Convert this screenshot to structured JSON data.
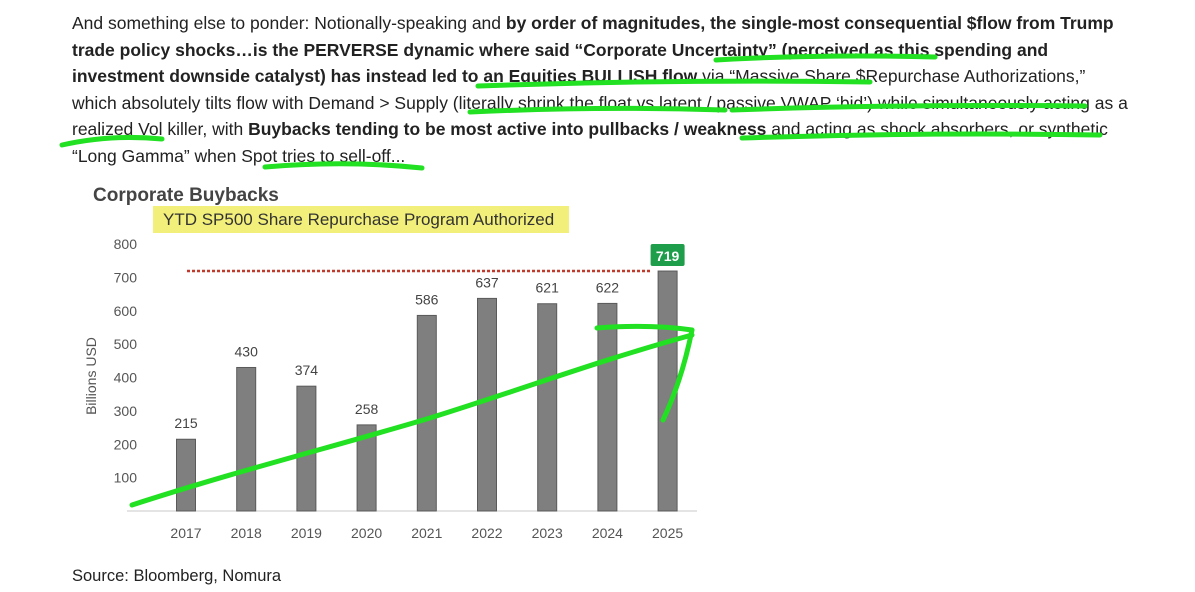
{
  "paragraph": {
    "p1": "And something else to ponder: Notionally-speaking and ",
    "b1": "by order of magnitudes, the single-most consequential $flow from Trump trade policy shocks…is the PERVERSE dynamic where said “Corporate Uncertainty” (perceived as this spending and investment downside catalyst) has instead led to an Equities BULLISH flow",
    "p2": " via “Massive Share $Repurchase Authorizations,” which absolutely tilts flow with Demand > Supply (literally shrink the float vs latent / passive VWAP ‘bid’) while simultaneously acting as a realized Vol killer, with ",
    "b2": "Buybacks tending to be most active into pullbacks / weakness",
    "p3": " and acting as shock absorbers, or synthetic “Long Gamma” when Spot tries to sell-off..."
  },
  "source": "Source: Bloomberg, Nomura",
  "colors": {
    "bar": "#7f7f7f",
    "bar_stroke": "#5a5a5a",
    "highlight": "#f2ef7a",
    "ref_line": "#c0392b",
    "badge": "#1e9e4a",
    "annotation": "#22e022"
  },
  "chart_data": {
    "type": "bar",
    "title": "Corporate Buybacks",
    "subtitle": "YTD SP500 Share Repurchase Program Authorized",
    "ylabel": "Billions USD",
    "xlabel": "",
    "categories": [
      "2017",
      "2018",
      "2019",
      "2020",
      "2021",
      "2022",
      "2023",
      "2024",
      "2025"
    ],
    "values": [
      215,
      430,
      374,
      258,
      586,
      637,
      621,
      622,
      719
    ],
    "data_labels": [
      "215",
      "430",
      "374",
      "258",
      "586",
      "637",
      "621",
      "622",
      "719"
    ],
    "highlighted_label": "719",
    "y_ticks": [
      "100",
      "200",
      "300",
      "400",
      "500",
      "600",
      "700",
      "800"
    ],
    "ylim": [
      0,
      800
    ],
    "reference_line": 719,
    "grid": false,
    "annotations": "hand-drawn green upward trend arrow across bars"
  }
}
